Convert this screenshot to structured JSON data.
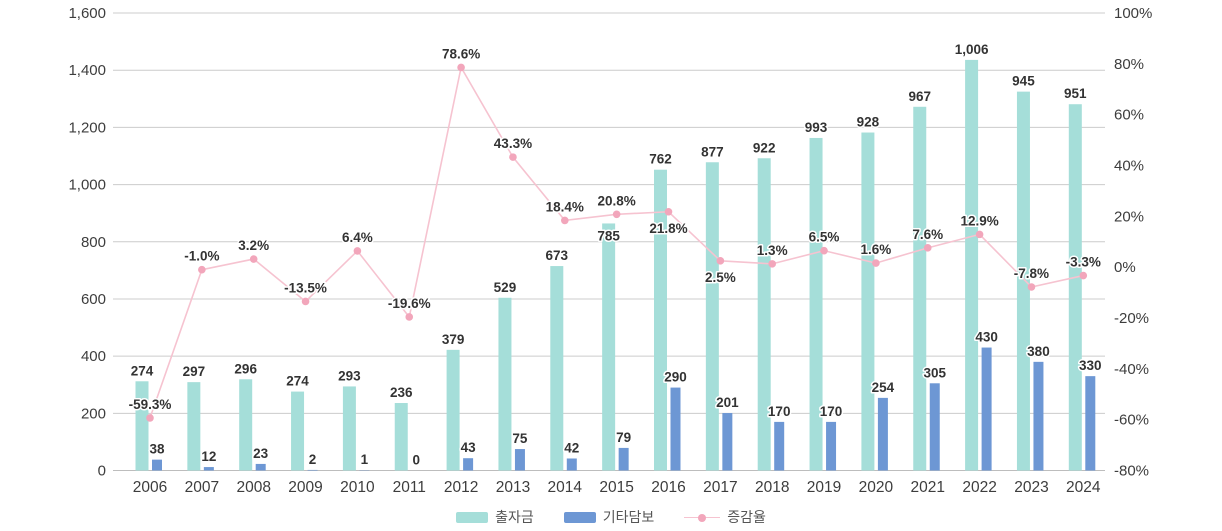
{
  "chart_data": {
    "type": "bar",
    "subtype": "grouped-bar-with-line-combo",
    "title": "",
    "categories": [
      "2006",
      "2007",
      "2008",
      "2009",
      "2010",
      "2011",
      "2012",
      "2013",
      "2014",
      "2015",
      "2016",
      "2017",
      "2018",
      "2019",
      "2020",
      "2021",
      "2022",
      "2023",
      "2024"
    ],
    "series": [
      {
        "name": "출자금",
        "type": "bar",
        "color": "#a5ded9",
        "values": [
          274,
          297,
          296,
          274,
          293,
          236,
          379,
          529,
          673,
          785,
          762,
          877,
          922,
          993,
          928,
          967,
          1006,
          945,
          951
        ]
      },
      {
        "name": "기타담보",
        "type": "bar",
        "color": "#6d97d4",
        "values": [
          38,
          12,
          23,
          2,
          1,
          0,
          43,
          75,
          42,
          79,
          290,
          201,
          170,
          170,
          254,
          305,
          430,
          380,
          330
        ]
      },
      {
        "name": "증감율",
        "type": "line",
        "color": "#f6c3d0",
        "marker_color": "#f2a6bb",
        "axis": "right",
        "values": [
          -59.3,
          -1.0,
          3.2,
          -13.5,
          6.4,
          -19.6,
          78.6,
          43.3,
          18.4,
          20.8,
          21.8,
          2.5,
          1.3,
          6.5,
          1.6,
          7.6,
          12.9,
          -7.8,
          -3.3
        ]
      }
    ],
    "left_axis": {
      "min": 0,
      "max": 1600,
      "step": 200,
      "tick_labels_top_to_bottom": [
        "1,600",
        "1,400",
        "1,200",
        "1,000",
        "800",
        "600",
        "400",
        "200",
        "0"
      ]
    },
    "right_axis": {
      "min": -80,
      "max": 100,
      "step": 20,
      "tick_labels_top_to_bottom": [
        "100%",
        "80%",
        "60%",
        "40%",
        "20%",
        "0%",
        "-20%",
        "-40%",
        "-60%",
        "-80%"
      ]
    },
    "layout_hints": {
      "grid": "horizontal-only",
      "legend_position": "bottom-center",
      "bar_height_note": "teal bar pixel height equals sum of both bar series values",
      "pct_label_below_dot_indices": [
        10,
        11
      ],
      "bar_label_inside_top_indices": [
        9
      ]
    }
  },
  "legend": {
    "items": [
      {
        "label": "출자금",
        "swatch": "teal"
      },
      {
        "label": "기타담보",
        "swatch": "blue"
      },
      {
        "label": "증감율",
        "swatch": "pink-line"
      }
    ]
  },
  "colors": {
    "bar_teal": "#a5ded9",
    "bar_blue": "#6d97d4",
    "line_pink": "#f6c3d0",
    "marker_pink": "#f2a6bb",
    "gridline": "#cccccc",
    "baseline": "#bdbdbd",
    "tick_text": "#3d3d3d",
    "value_text": "#333333"
  }
}
